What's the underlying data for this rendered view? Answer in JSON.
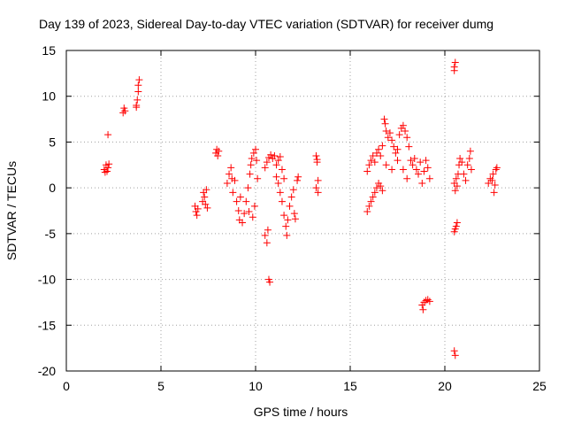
{
  "chart_data": {
    "type": "scatter",
    "title": "Day 139 of 2023, Sidereal Day-to-day VTEC variation (SDTVAR) for receiver dumg",
    "xlabel": "GPS time / hours",
    "ylabel": "SDTVAR / TECUs",
    "xlim": [
      0,
      25
    ],
    "ylim": [
      -20,
      15
    ],
    "xticks": [
      0,
      5,
      10,
      15,
      20,
      25
    ],
    "yticks": [
      -20,
      -15,
      -10,
      -5,
      0,
      5,
      10,
      15
    ],
    "grid": true,
    "marker": "+",
    "series": [
      {
        "name": "SDTVAR",
        "color": "#ff0000",
        "points": [
          [
            2.0,
            2.0
          ],
          [
            2.1,
            2.5
          ],
          [
            2.15,
            1.8
          ],
          [
            2.2,
            2.2
          ],
          [
            2.05,
            1.7
          ],
          [
            2.25,
            2.6
          ],
          [
            2.2,
            5.8
          ],
          [
            3.0,
            8.2
          ],
          [
            3.05,
            8.7
          ],
          [
            3.1,
            8.4
          ],
          [
            3.7,
            9.0
          ],
          [
            3.75,
            9.6
          ],
          [
            3.8,
            10.5
          ],
          [
            3.8,
            11.2
          ],
          [
            3.85,
            11.8
          ],
          [
            3.7,
            8.8
          ],
          [
            6.8,
            -2.0
          ],
          [
            6.85,
            -2.6
          ],
          [
            6.9,
            -3.0
          ],
          [
            6.95,
            -2.3
          ],
          [
            7.2,
            -1.5
          ],
          [
            7.25,
            -0.5
          ],
          [
            7.3,
            -1.0
          ],
          [
            7.35,
            -1.8
          ],
          [
            7.4,
            -0.2
          ],
          [
            7.45,
            -2.2
          ],
          [
            7.9,
            3.8
          ],
          [
            7.95,
            4.2
          ],
          [
            8.0,
            3.5
          ],
          [
            8.05,
            4.0
          ],
          [
            8.5,
            0.5
          ],
          [
            8.6,
            1.5
          ],
          [
            8.7,
            2.2
          ],
          [
            8.75,
            1.0
          ],
          [
            8.8,
            -0.5
          ],
          [
            8.9,
            0.8
          ],
          [
            9.0,
            -1.5
          ],
          [
            9.1,
            -2.5
          ],
          [
            9.15,
            -3.5
          ],
          [
            9.2,
            -1.0
          ],
          [
            9.3,
            -3.8
          ],
          [
            9.4,
            -2.8
          ],
          [
            9.5,
            -1.5
          ],
          [
            9.6,
            0.0
          ],
          [
            9.7,
            1.5
          ],
          [
            9.75,
            2.5
          ],
          [
            9.8,
            3.2
          ],
          [
            9.9,
            3.8
          ],
          [
            10.0,
            4.2
          ],
          [
            10.05,
            3.0
          ],
          [
            10.1,
            1.0
          ],
          [
            9.95,
            -2.0
          ],
          [
            9.85,
            -3.2
          ],
          [
            9.65,
            -2.6
          ],
          [
            10.5,
            -5.2
          ],
          [
            10.6,
            -6.0
          ],
          [
            10.65,
            -4.6
          ],
          [
            10.7,
            -10.0
          ],
          [
            10.75,
            -10.3
          ],
          [
            10.5,
            2.2
          ],
          [
            10.6,
            2.8
          ],
          [
            10.7,
            3.3
          ],
          [
            10.8,
            3.6
          ],
          [
            10.9,
            3.2
          ],
          [
            11.0,
            3.5
          ],
          [
            11.1,
            2.5
          ],
          [
            11.2,
            3.0
          ],
          [
            11.3,
            3.4
          ],
          [
            11.4,
            2.0
          ],
          [
            11.5,
            1.0
          ],
          [
            11.1,
            1.2
          ],
          [
            11.2,
            0.5
          ],
          [
            11.3,
            -0.5
          ],
          [
            11.4,
            -1.5
          ],
          [
            11.5,
            -3.0
          ],
          [
            11.6,
            -4.2
          ],
          [
            11.65,
            -5.2
          ],
          [
            11.7,
            -3.5
          ],
          [
            11.8,
            -2.0
          ],
          [
            11.9,
            -1.0
          ],
          [
            12.0,
            -0.2
          ],
          [
            12.05,
            -2.8
          ],
          [
            12.1,
            -3.4
          ],
          [
            12.2,
            0.8
          ],
          [
            12.25,
            1.2
          ],
          [
            13.2,
            3.5
          ],
          [
            13.25,
            2.8
          ],
          [
            13.3,
            0.8
          ],
          [
            13.2,
            0.0
          ],
          [
            13.3,
            -0.5
          ],
          [
            13.25,
            3.1
          ],
          [
            15.9,
            -2.6
          ],
          [
            16.0,
            -2.0
          ],
          [
            16.1,
            -1.5
          ],
          [
            16.2,
            -1.0
          ],
          [
            16.3,
            -0.5
          ],
          [
            16.4,
            0.0
          ],
          [
            16.5,
            0.5
          ],
          [
            16.6,
            0.2
          ],
          [
            16.7,
            -0.3
          ],
          [
            15.9,
            1.8
          ],
          [
            16.0,
            2.5
          ],
          [
            16.1,
            3.0
          ],
          [
            16.2,
            3.5
          ],
          [
            16.3,
            2.8
          ],
          [
            16.4,
            3.8
          ],
          [
            16.5,
            4.2
          ],
          [
            16.6,
            3.5
          ],
          [
            16.7,
            4.6
          ],
          [
            16.8,
            7.5
          ],
          [
            16.85,
            7.0
          ],
          [
            16.9,
            6.2
          ],
          [
            17.0,
            5.5
          ],
          [
            17.1,
            6.0
          ],
          [
            17.2,
            5.2
          ],
          [
            17.3,
            4.5
          ],
          [
            17.4,
            3.8
          ],
          [
            17.5,
            4.2
          ],
          [
            17.6,
            5.8
          ],
          [
            17.7,
            6.5
          ],
          [
            17.8,
            6.8
          ],
          [
            17.9,
            6.2
          ],
          [
            18.0,
            5.5
          ],
          [
            18.1,
            4.5
          ],
          [
            18.2,
            3.0
          ],
          [
            18.3,
            2.5
          ],
          [
            18.4,
            3.2
          ],
          [
            18.5,
            2.0
          ],
          [
            18.6,
            1.5
          ],
          [
            18.7,
            2.8
          ],
          [
            18.8,
            0.5
          ],
          [
            18.9,
            1.8
          ],
          [
            19.0,
            3.0
          ],
          [
            19.1,
            2.2
          ],
          [
            19.2,
            1.0
          ],
          [
            17.5,
            3.0
          ],
          [
            17.8,
            2.0
          ],
          [
            18.0,
            1.0
          ],
          [
            16.9,
            2.5
          ],
          [
            17.2,
            2.0
          ],
          [
            18.8,
            -12.8
          ],
          [
            18.9,
            -12.5
          ],
          [
            19.0,
            -12.3
          ],
          [
            19.1,
            -12.2
          ],
          [
            19.2,
            -12.4
          ],
          [
            18.85,
            -13.3
          ],
          [
            20.5,
            13.2
          ],
          [
            20.55,
            13.7
          ],
          [
            20.5,
            12.8
          ],
          [
            20.5,
            -17.8
          ],
          [
            20.55,
            -18.3
          ],
          [
            20.5,
            -4.8
          ],
          [
            20.6,
            -4.2
          ],
          [
            20.65,
            -3.8
          ],
          [
            20.55,
            -4.5
          ],
          [
            20.5,
            0.5
          ],
          [
            20.6,
            1.0
          ],
          [
            20.7,
            1.5
          ],
          [
            20.75,
            2.5
          ],
          [
            20.8,
            3.2
          ],
          [
            20.9,
            2.8
          ],
          [
            21.0,
            1.5
          ],
          [
            21.1,
            0.8
          ],
          [
            21.2,
            2.5
          ],
          [
            21.3,
            3.2
          ],
          [
            21.35,
            4.0
          ],
          [
            21.4,
            2.0
          ],
          [
            20.55,
            -0.3
          ],
          [
            20.65,
            0.2
          ],
          [
            22.3,
            0.5
          ],
          [
            22.4,
            1.0
          ],
          [
            22.5,
            0.8
          ],
          [
            22.55,
            1.5
          ],
          [
            22.6,
            -0.5
          ],
          [
            22.65,
            0.3
          ],
          [
            22.7,
            2.0
          ],
          [
            22.75,
            2.2
          ]
        ]
      }
    ]
  }
}
